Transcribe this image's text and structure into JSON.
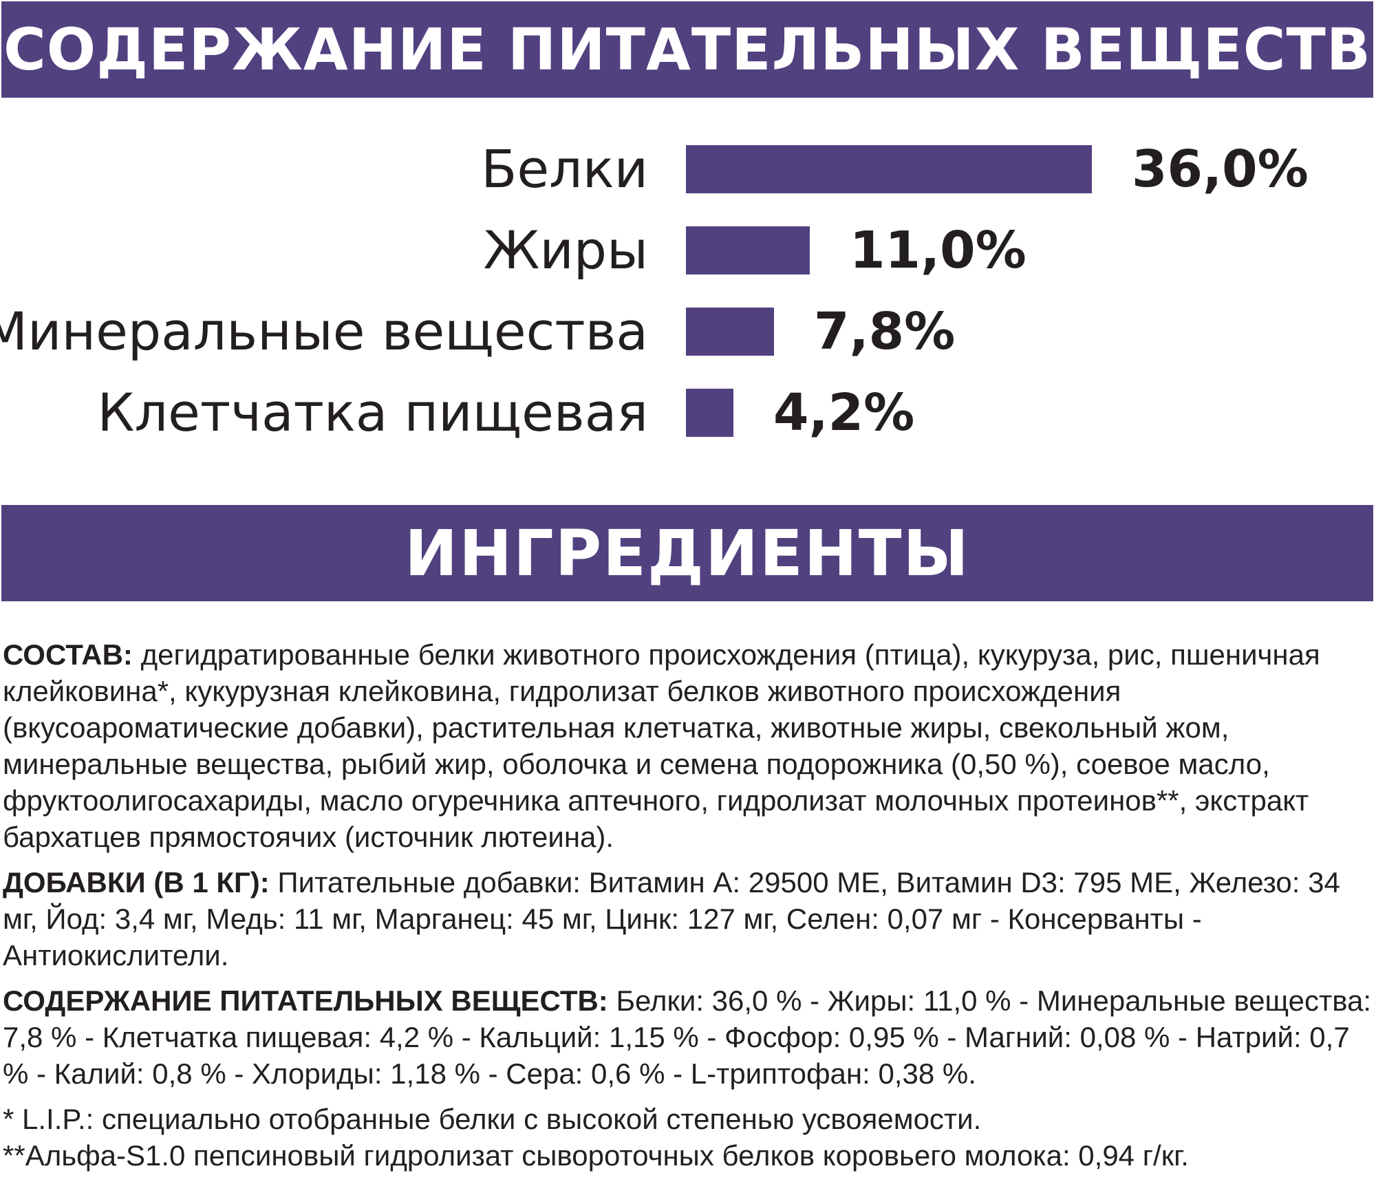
{
  "colors": {
    "accent": "#51417f",
    "text": "#231f20",
    "background": "#ffffff"
  },
  "header": {
    "nutrients_title": "СОДЕРЖАНИЕ ПИТАТЕЛЬНЫХ ВЕЩЕСТВ",
    "ingredients_title": "ИНГРЕДИЕНТЫ"
  },
  "nutrients": [
    {
      "label": "Белки",
      "value": 36.0,
      "value_text": "36,0%"
    },
    {
      "label": "Жиры",
      "value": 11.0,
      "value_text": "11,0%"
    },
    {
      "label": "Минеральные вещества",
      "value": 7.8,
      "value_text": "7,8%"
    },
    {
      "label": "Клетчатка пищевая",
      "value": 4.2,
      "value_text": "4,2%"
    }
  ],
  "composition": {
    "label": "СОСТАВ:",
    "text": " дегидратированные белки животного происхождения (птица), кукуруза, рис, пшеничная клейковина*, кукурузная клейковина, гидролизат белков животного происхождения (вкусоароматические добавки), растительная клетчатка, животные жиры, свекольный жом, минеральные вещества, рыбий жир, оболочка и семена подорожника (0,50 %), соевое масло, фруктоолигосахариды, масло огуречника аптечного, гидролизат молочных протеинов**, экстракт бархатцев прямостоячих (источник лютеина)."
  },
  "additives": {
    "label": "ДОБАВКИ (В 1 КГ):",
    "text": " Питательные добавки: Витамин A: 29500 МЕ, Витамин D3: 795 МЕ, Железо: 34 мг, Йод: 3,4 мг, Медь: 11 мг, Марганец: 45 мг, Цинк: 127 мг, Селен: 0,07 мг - Консерванты - Антиокислители."
  },
  "nutrient_content": {
    "label": "СОДЕРЖАНИЕ ПИТАТЕЛЬНЫХ ВЕЩЕСТВ:",
    "text": " Белки: 36,0 % - Жиры: 11,0 % - Минеральные вещества: 7,8 % - Клетчатка пищевая: 4,2 % - Кальций: 1,15 % - Фосфор: 0,95 % - Магний: 0,08 % - Натрий: 0,7 % - Калий: 0,8 % - Хлориды: 1,18 % - Сера: 0,6 % - L-триптофан: 0,38 %."
  },
  "footnotes": [
    " * L.I.P.: специально отобранные белки с высокой степенью усвояемости.",
    "**Альфа-S1.0 пепсиновый гидролизат сывороточных белков коровьего молока: 0,94 г/кг."
  ]
}
